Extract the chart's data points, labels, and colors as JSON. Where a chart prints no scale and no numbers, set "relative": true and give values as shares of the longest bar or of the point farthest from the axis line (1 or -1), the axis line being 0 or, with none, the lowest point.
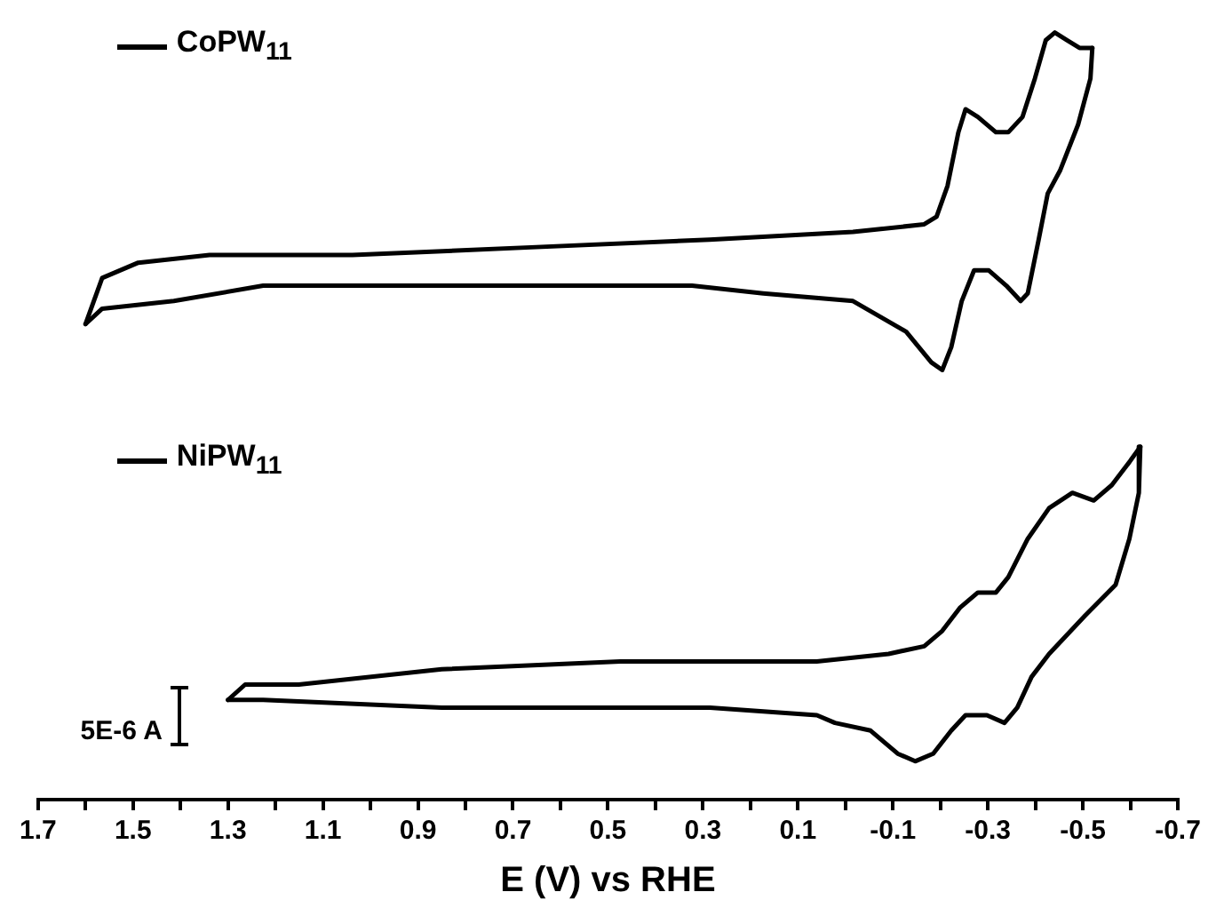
{
  "chart_data": {
    "type": "line",
    "relative": true,
    "xlabel": "E (V) vs RHE",
    "xlim": [
      1.7,
      -0.7
    ],
    "legend": "left",
    "marker": "none",
    "line_style": "solid",
    "xticks": [
      1.7,
      {
        "value": 1.6,
        "label": null
      },
      1.5,
      {
        "value": 1.4,
        "label": null
      },
      1.3,
      {
        "value": 1.2,
        "label": null
      },
      1.1,
      {
        "value": 1.0,
        "label": null
      },
      0.9,
      {
        "value": 0.8,
        "label": null
      },
      0.7,
      {
        "value": 0.6,
        "label": null
      },
      0.5,
      {
        "value": 0.4,
        "label": null
      },
      0.3,
      {
        "value": 0.2,
        "label": null
      },
      0.1,
      {
        "value": 0.0,
        "label": null
      },
      -0.1,
      {
        "value": -0.2,
        "label": null
      },
      -0.3,
      {
        "value": -0.4,
        "label": null
      },
      -0.5,
      {
        "value": -0.6,
        "label": null
      },
      -0.7
    ],
    "annotations": [
      "5E-6 A"
    ],
    "series": [
      {
        "name": "CoPW$_{11}$",
        "color": "#000000",
        "x": [
          1.6,
          1.565,
          1.489,
          1.339,
          1.038,
          0.662,
          0.286,
          -0.016,
          -0.166,
          -0.192,
          -0.215,
          -0.238,
          -0.253,
          -0.279,
          -0.317,
          -0.343,
          -0.373,
          -0.399,
          -0.422,
          -0.441,
          -0.467,
          -0.493,
          -0.52
        ],
        "values": [
          0.62,
          0.68,
          0.7,
          0.71,
          0.71,
          0.72,
          0.73,
          0.74,
          0.75,
          0.76,
          0.8,
          0.87,
          0.9,
          0.89,
          0.87,
          0.87,
          0.89,
          0.94,
          0.99,
          1.0,
          0.99,
          0.98,
          0.98
        ]
      },
      {
        "color": "#000000",
        "x": [
          -0.52,
          -0.516,
          -0.49,
          -0.452,
          -0.426,
          -0.407,
          -0.384,
          -0.369,
          -0.339,
          -0.302,
          -0.271,
          -0.245,
          -0.223,
          -0.204,
          -0.181,
          -0.128,
          -0.072,
          -0.016,
          0.173,
          0.323,
          0.662,
          0.887,
          1.038,
          1.226,
          1.414,
          1.565,
          1.6
        ],
        "values": [
          0.98,
          0.94,
          0.88,
          0.82,
          0.79,
          0.73,
          0.66,
          0.65,
          0.67,
          0.69,
          0.69,
          0.65,
          0.59,
          0.56,
          0.57,
          0.61,
          0.63,
          0.65,
          0.66,
          0.67,
          0.67,
          0.67,
          0.67,
          0.67,
          0.65,
          0.64,
          0.62
        ]
      },
      {
        "name": "NiPW$_{11}$",
        "color": "#000000",
        "x": [
          1.3,
          1.264,
          1.151,
          0.85,
          0.474,
          0.06,
          -0.091,
          -0.166,
          -0.204,
          -0.241,
          -0.279,
          -0.317,
          -0.343,
          -0.384,
          -0.429,
          -0.478,
          -0.523,
          -0.561,
          -0.598,
          -0.621
        ],
        "values": [
          0.13,
          0.15,
          0.15,
          0.17,
          0.18,
          0.18,
          0.19,
          0.2,
          0.22,
          0.25,
          0.27,
          0.27,
          0.29,
          0.34,
          0.38,
          0.4,
          0.39,
          0.41,
          0.44,
          0.46
        ]
      },
      {
        "color": "#000000",
        "x": [
          -0.621,
          -0.618,
          -0.598,
          -0.569,
          -0.505,
          -0.429,
          -0.392,
          -0.362,
          -0.335,
          -0.298,
          -0.253,
          -0.223,
          -0.185,
          -0.147,
          -0.11,
          -0.053,
          0.022,
          0.06,
          0.285,
          0.662,
          0.85,
          1.226,
          1.3
        ],
        "values": [
          0.46,
          0.4,
          0.34,
          0.28,
          0.24,
          0.19,
          0.16,
          0.12,
          0.1,
          0.11,
          0.11,
          0.09,
          0.06,
          0.05,
          0.06,
          0.09,
          0.1,
          0.11,
          0.12,
          0.12,
          0.12,
          0.13,
          0.13
        ]
      }
    ]
  }
}
